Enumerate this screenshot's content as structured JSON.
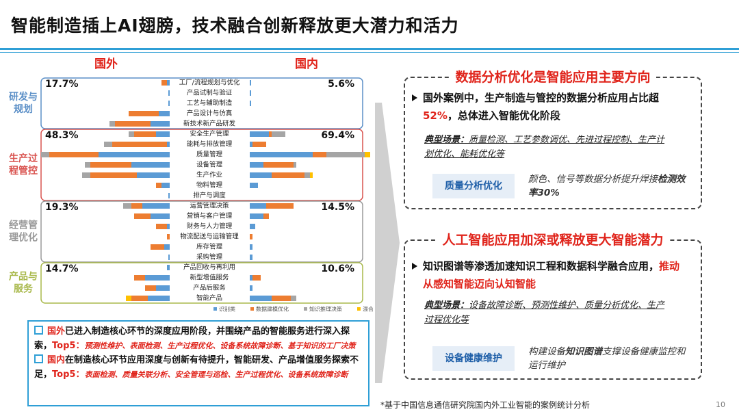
{
  "header": {
    "title": "智能制造插上AI翅膀，技术融合创新释放更大潜力和活力"
  },
  "chart_data": {
    "type": "butterfly",
    "categories": [
      "工厂/流程规划与优化",
      "产品试制与验证",
      "工艺与辅助制造",
      "产品设计与仿真",
      "新技术新产品研发",
      "安全生产管理",
      "能耗与排放管理",
      "质量管理",
      "设备管理",
      "生产作业",
      "物料管理",
      "排产与调度",
      "运营管理决策",
      "营销与客户管理",
      "财务与人力管理",
      "物流配送与运输管理",
      "库存管理",
      "采购管理",
      "产品回收与再利用",
      "新型增值服务",
      "产品后服务",
      "智能产品"
    ],
    "groups": [
      {
        "name": "研发与规划",
        "share_labels": [
          "17.7%",
          "5.6%"
        ],
        "color": "#5b8fc7"
      },
      {
        "name": "生产过程管控",
        "share_labels": [
          "48.3%",
          "69.4%"
        ],
        "color": "#d9534f"
      },
      {
        "name": "经营管理优化",
        "share_labels": [
          "19.3%",
          "14.5%"
        ],
        "color": "#9a9a9a"
      },
      {
        "name": "产品与服务",
        "share_labels": [
          "14.7%",
          "10.6%"
        ],
        "color": "#a8b84a"
      }
    ],
    "legend": [
      {
        "name": "识别类",
        "color": "#5b9bd5"
      },
      {
        "name": "数据建模优化",
        "color": "#ed7d31"
      },
      {
        "name": "知识推理决策",
        "color": "#a5a5a5"
      },
      {
        "name": "混合",
        "color": "#ffc000"
      }
    ],
    "sides": [
      {
        "title": "国外",
        "series": [
          {
            "values": [
              2,
              1,
              1,
              8,
              14,
              10,
              2,
              52,
              28,
              24,
              6,
              1,
              20,
              14,
              2,
              0,
              4,
              1,
              2,
              18,
              10,
              16
            ]
          },
          {
            "values": [
              4,
              0,
              0,
              22,
              26,
              16,
              40,
              36,
              30,
              34,
              4,
              0,
              8,
              12,
              8,
              2,
              10,
              0,
              0,
              8,
              8,
              12
            ]
          },
          {
            "values": [
              0,
              0,
              0,
              0,
              4,
              4,
              6,
              6,
              4,
              6,
              0,
              0,
              6,
              0,
              0,
              0,
              0,
              0,
              0,
              0,
              0,
              0
            ]
          },
          {
            "values": [
              0,
              0,
              0,
              0,
              0,
              0,
              0,
              0,
              0,
              0,
              0,
              0,
              0,
              0,
              0,
              0,
              0,
              0,
              0,
              0,
              0,
              4
            ]
          }
        ]
      },
      {
        "title": "国内",
        "series": [
          {
            "values": [
              1,
              1,
              1,
              0,
              0,
              14,
              2,
              46,
              10,
              16,
              6,
              0,
              12,
              10,
              4,
              0,
              2,
              2,
              0,
              2,
              2,
              16
            ]
          },
          {
            "values": [
              0,
              0,
              0,
              0,
              0,
              2,
              10,
              10,
              22,
              24,
              0,
              0,
              20,
              4,
              0,
              2,
              0,
              0,
              0,
              6,
              0,
              14
            ]
          },
          {
            "values": [
              0,
              0,
              0,
              0,
              0,
              10,
              0,
              28,
              2,
              4,
              0,
              0,
              0,
              0,
              0,
              0,
              0,
              0,
              0,
              0,
              0,
              4
            ]
          },
          {
            "values": [
              0,
              0,
              0,
              0,
              0,
              0,
              0,
              4,
              0,
              2,
              0,
              0,
              0,
              0,
              0,
              0,
              0,
              0,
              0,
              0,
              0,
              0
            ]
          }
        ]
      }
    ]
  },
  "notes": [
    {
      "lead": "国外",
      "text": "已进入制造核心环节的深度应用阶段，并围绕产品的智能服务进行深入探索，",
      "top_label": "Top5：",
      "top_items": "预测性维护、表面检测、生产过程优化、设备系统故障诊断、基于知识的工厂决策"
    },
    {
      "lead": "国内",
      "text": "在制造核心环节应用深度与创新有待提升，智能研发、产品增值服务探索不足，",
      "top_label": "Top5：",
      "top_items": "表面检测、质量关联分析、安全管理与巡检、生产过程优化、设备系统故障诊断"
    }
  ],
  "panels": [
    {
      "title": "数据分析优化是智能应用主要方向",
      "bullet": {
        "text": "国外案例中，生产制造与管控的数据分析应用占比超",
        "highlight": "52%",
        "tail": "，总体进入智能优化阶段"
      },
      "scenario": {
        "label": "典型场景：",
        "text": "质量检测、工艺参数调优、先进过程控制、生产计划优化、能耗优化等"
      },
      "example": {
        "tag": "质量分析优化",
        "text": "颜色、信号等数据分析提升焊接",
        "emphasis": "检测效率30%"
      }
    },
    {
      "title": "人工智能应用加深或释放更大智能潜力",
      "bullet": {
        "text": "知识图谱等渗透加速知识工程和数据科学融合应用，",
        "highlight": "推动从感知智能迈向认知智能"
      },
      "scenario": {
        "label": "典型场景：",
        "text": "设备故障诊断、预测性维护、质量分析优化、生产过程优化等"
      },
      "example": {
        "tag": "设备健康维护",
        "text": "构建设备",
        "emphasis": "知识图谱",
        "tail": "支撑设备健康监控和运行维护"
      }
    }
  ],
  "footer": {
    "note": "*基于中国信息通信研究院国内外工业智能的案例统计分析",
    "page": "10"
  }
}
